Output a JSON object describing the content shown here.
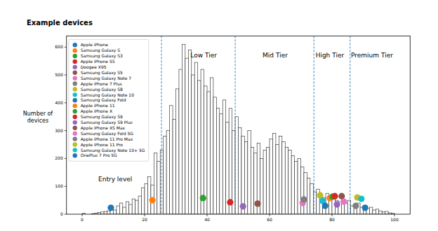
{
  "chart_data": {
    "type": "histogram",
    "title": "Example devices",
    "y_label": "Number of devices",
    "color": "#ffffff",
    "bins": [
      0,
      1,
      2,
      3,
      4,
      5,
      6,
      7,
      8,
      9,
      10,
      11,
      12,
      13,
      14,
      15,
      16,
      17,
      18,
      19,
      20,
      21,
      22,
      23,
      24,
      25,
      26,
      27,
      28,
      29,
      30,
      31,
      32,
      33,
      34,
      35,
      36,
      37,
      38,
      39,
      40,
      41,
      42,
      43,
      44,
      45,
      46,
      47,
      48,
      49,
      50,
      51,
      52,
      53,
      54,
      55,
      56,
      57,
      58,
      59,
      60,
      61,
      62,
      63,
      64,
      65,
      66,
      67,
      68,
      69,
      70,
      71,
      72,
      73,
      74,
      75,
      76,
      77,
      78,
      79,
      80,
      81,
      82,
      83,
      84,
      85,
      86,
      87,
      88,
      89,
      90,
      91,
      92,
      93,
      94,
      95,
      96,
      97,
      98,
      99,
      100
    ],
    "values": [
      3,
      0,
      0,
      2,
      4,
      6,
      8,
      10,
      12,
      20,
      15,
      30,
      40,
      25,
      45,
      35,
      55,
      50,
      65,
      95,
      110,
      135,
      105,
      220,
      190,
      230,
      280,
      300,
      390,
      340,
      450,
      520,
      610,
      560,
      590,
      500,
      545,
      480,
      520,
      460,
      440,
      490,
      420,
      380,
      360,
      410,
      330,
      380,
      300,
      350,
      310,
      280,
      260,
      300,
      240,
      220,
      255,
      200,
      230,
      240,
      270,
      290,
      250,
      280,
      260,
      240,
      230,
      210,
      190,
      200,
      170,
      150,
      130,
      110,
      80,
      90,
      70,
      60,
      75,
      55,
      60,
      50,
      45,
      55,
      40,
      50,
      30,
      35,
      40,
      25,
      30,
      20,
      25,
      15,
      18,
      12,
      8,
      10,
      5,
      3
    ],
    "xlim": [
      -5,
      105
    ],
    "xticks": [
      0,
      20,
      40,
      60,
      80,
      100
    ],
    "ylim": [
      0,
      640
    ],
    "yticks": [
      0,
      100,
      200,
      300,
      400,
      500,
      600
    ],
    "grid": false,
    "legend": "upper left",
    "tier_boundaries": [
      25.4,
      49,
      74.2,
      85.8
    ],
    "annotations": [
      {
        "text": "Entry level",
        "x": 10.6,
        "y": 118
      },
      {
        "text": "Low Tier",
        "x": 38.9,
        "y": 562
      },
      {
        "text": "Mid Tier",
        "x": 61.8,
        "y": 562
      },
      {
        "text": "High Tier",
        "x": 79.3,
        "y": 562
      },
      {
        "text": "Premium Tier",
        "x": 92.8,
        "y": 562
      }
    ],
    "series": [
      {
        "name": "Apple iPhone",
        "color": "#1f77b4",
        "type": "scatter",
        "x": [
          9.2
        ],
        "values": [
          23
        ]
      },
      {
        "name": "Samsung Galaxy S",
        "color": "#ff7f0e",
        "type": "scatter",
        "x": [
          22.5
        ],
        "values": [
          50
        ]
      },
      {
        "name": "Samsung Galaxy S3",
        "color": "#2ca02c",
        "type": "scatter",
        "x": [
          38.7
        ],
        "values": [
          58
        ]
      },
      {
        "name": "Apple iPhone 5S",
        "color": "#d62728",
        "type": "scatter",
        "x": [
          47.4
        ],
        "values": [
          43
        ]
      },
      {
        "name": "Doogee X95",
        "color": "#9467bd",
        "type": "scatter",
        "x": [
          51.5
        ],
        "values": [
          28
        ]
      },
      {
        "name": "Samsung Galaxy S5",
        "color": "#8c564b",
        "type": "scatter",
        "x": [
          56.2
        ],
        "values": [
          38
        ]
      },
      {
        "name": "Samsung Galaxy Note 7",
        "color": "#e377c2",
        "type": "scatter",
        "x": [
          70.6
        ],
        "values": [
          40
        ]
      },
      {
        "name": "Apple iPhone 7 Plus",
        "color": "#7f7f7f",
        "type": "scatter",
        "x": [
          71
        ],
        "values": [
          53
        ]
      },
      {
        "name": "Samsung Galaxy S8",
        "color": "#bcbd22",
        "type": "scatter",
        "x": [
          76.2
        ],
        "values": [
          68
        ]
      },
      {
        "name": "Samsung Galaxy Note 10",
        "color": "#17becf",
        "type": "scatter",
        "x": [
          77
        ],
        "values": [
          48
        ]
      },
      {
        "name": "Samsung Galaxy Fold",
        "color": "#1f77b4",
        "type": "scatter",
        "x": [
          77.8
        ],
        "values": [
          30
        ]
      },
      {
        "name": "Apple iPhone 11",
        "color": "#ff7f0e",
        "type": "scatter",
        "x": [
          79.3
        ],
        "values": [
          58
        ]
      },
      {
        "name": "Apple iPhone X",
        "color": "#2ca02c",
        "type": "scatter",
        "x": [
          80.2
        ],
        "values": [
          63
        ]
      },
      {
        "name": "Samsung Galaxy S9",
        "color": "#d62728",
        "type": "scatter",
        "x": [
          80.9
        ],
        "values": [
          65
        ]
      },
      {
        "name": "Samsung Galaxy S9 Plus",
        "color": "#9467bd",
        "type": "scatter",
        "x": [
          81.6
        ],
        "values": [
          35
        ]
      },
      {
        "name": "Apple iPhone XS Max",
        "color": "#8c564b",
        "type": "scatter",
        "x": [
          83.1
        ],
        "values": [
          65
        ]
      },
      {
        "name": "Samsung Galaxy Fold 5G",
        "color": "#e377c2",
        "type": "scatter",
        "x": [
          83.8
        ],
        "values": [
          45
        ]
      },
      {
        "name": "Apple iPhone 11 Pro Max",
        "color": "#7f7f7f",
        "type": "scatter",
        "x": [
          87.6
        ],
        "values": [
          30
        ]
      },
      {
        "name": "Apple iPhone 11 Pro",
        "color": "#bcbd22",
        "type": "scatter",
        "x": [
          88.1
        ],
        "values": [
          60
        ]
      },
      {
        "name": "Samsung Galaxy Note 10+ 5G",
        "color": "#17becf",
        "type": "scatter",
        "x": [
          89.4
        ],
        "values": [
          55
        ]
      },
      {
        "name": "OnePlus 7 Pro 5G",
        "color": "#1f77b4",
        "type": "scatter",
        "x": [
          90.6
        ],
        "values": [
          23
        ]
      }
    ]
  }
}
